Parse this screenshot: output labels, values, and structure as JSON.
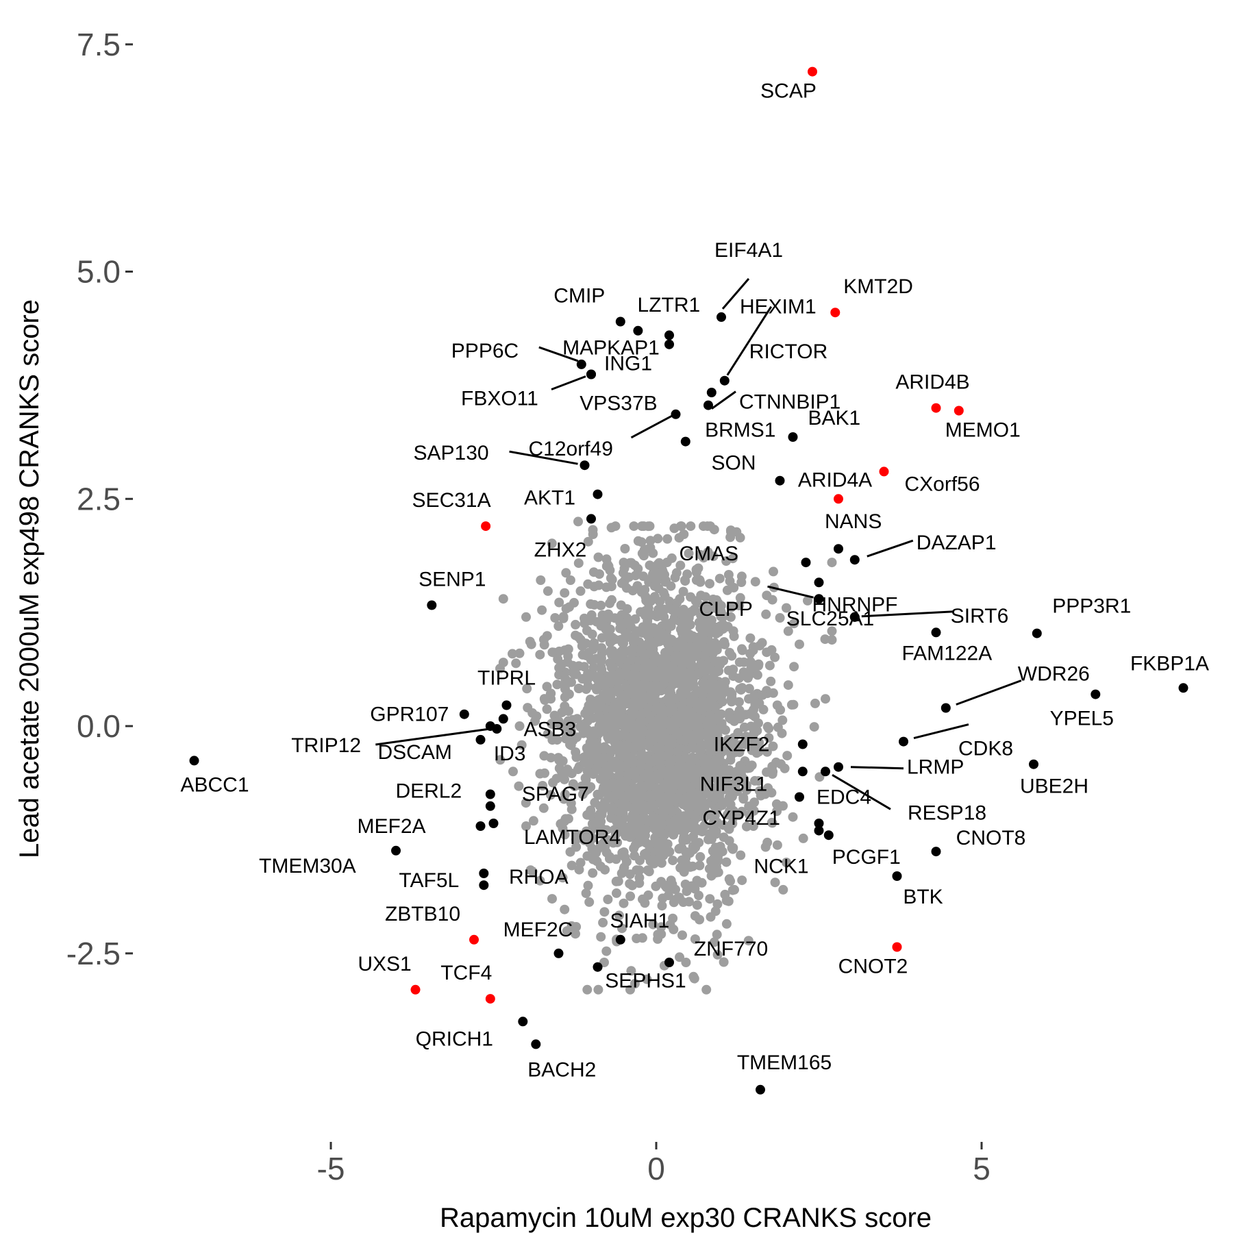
{
  "chart_data": {
    "type": "scatter",
    "title": "",
    "xlabel": "Rapamycin 10uM exp30 CRANKS score",
    "ylabel": "Lead acetate 2000uM exp498 CRANKS score",
    "xlim": [
      -7.45,
      8.35
    ],
    "ylim": [
      -4.42,
      7.82
    ],
    "grid": false,
    "legend": "none",
    "x_ticks": [
      {
        "value": -5,
        "label": "-5"
      },
      {
        "value": 0,
        "label": "0"
      },
      {
        "value": 5,
        "label": "5"
      }
    ],
    "y_ticks": [
      {
        "value": 7.5,
        "label": "7.5"
      },
      {
        "value": 5.0,
        "label": "5.0"
      },
      {
        "value": 2.5,
        "label": "2.5"
      },
      {
        "value": 0.0,
        "label": "0.0"
      },
      {
        "value": -2.5,
        "label": "-2.5"
      }
    ],
    "colors": {
      "background_cloud": "#9e9e9e",
      "significant": "#000000",
      "highlight": "#ff0000",
      "tick_text": "#4d4d4d"
    },
    "background_cloud": {
      "description_points": [
        [
          -1.2,
          2.25
        ],
        [
          -0.5,
          1.8
        ],
        [
          0.5,
          1.9
        ],
        [
          1.8,
          1.7
        ],
        [
          2.7,
          1.8
        ],
        [
          -2.0,
          1.2
        ],
        [
          -2.35,
          1.4
        ],
        [
          -2.1,
          0.8
        ],
        [
          -2.35,
          0.7
        ],
        [
          -2.1,
          0.0
        ],
        [
          -2.0,
          -1.1
        ],
        [
          -1.9,
          -1.6
        ],
        [
          -1.3,
          -2.2
        ],
        [
          -0.8,
          -2.6
        ],
        [
          -0.4,
          -2.9
        ],
        [
          0.4,
          -2.3
        ],
        [
          1.2,
          -1.8
        ],
        [
          1.95,
          -1.8
        ],
        [
          2.0,
          -1.5
        ],
        [
          2.0,
          1.3
        ],
        [
          2.2,
          0.9
        ],
        [
          2.6,
          0.3
        ],
        [
          2.1,
          -1.0
        ],
        [
          -2.2,
          -0.5
        ],
        [
          -1.6,
          -1.9
        ]
      ]
    },
    "series": [
      {
        "color": "red",
        "points": [
          {
            "label": "SCAP",
            "x": 2.4,
            "y": 7.2
          },
          {
            "label": "KMT2D",
            "x": 2.75,
            "y": 4.55
          },
          {
            "label": "ARID4B",
            "x": 4.3,
            "y": 3.5
          },
          {
            "label": "MEMO1",
            "x": 4.65,
            "y": 3.47
          },
          {
            "label": "CXorf56",
            "x": 3.5,
            "y": 2.8
          },
          {
            "label": "ARID4A",
            "x": 2.8,
            "y": 2.5
          },
          {
            "label": "SEC31A",
            "x": -2.62,
            "y": 2.2
          },
          {
            "label": "ZBTB10",
            "x": -2.8,
            "y": -2.35
          },
          {
            "label": "UXS1",
            "x": -3.7,
            "y": -2.9
          },
          {
            "label": "TCF4",
            "x": -2.55,
            "y": -3.0
          },
          {
            "label": "CNOT2",
            "x": 3.7,
            "y": -2.43
          }
        ]
      },
      {
        "color": "black",
        "points": [
          {
            "label": "EIF4A1",
            "x": 1.0,
            "y": 4.5
          },
          {
            "label": "CMIP",
            "x": -0.55,
            "y": 4.45
          },
          {
            "label": "LZTR1",
            "x": -0.28,
            "y": 4.35
          },
          {
            "label": "HEXIM1",
            "x": 1.05,
            "y": 3.8
          },
          {
            "label": "RICTOR",
            "x": 0.85,
            "y": 3.67
          },
          {
            "label": "ING1",
            "x": 0.2,
            "y": 4.2
          },
          {
            "label": "MAPKAP1",
            "x": 0.2,
            "y": 4.3
          },
          {
            "label": "PPP6C",
            "x": -1.15,
            "y": 3.98
          },
          {
            "label": "VPS37B",
            "x": -1.0,
            "y": 3.87
          },
          {
            "label": "FBXO11",
            "x": -1.0,
            "y": 3.87
          },
          {
            "label": "CTNNBIP1",
            "x": 0.8,
            "y": 3.53
          },
          {
            "label": "C12orf49",
            "x": 0.3,
            "y": 3.43
          },
          {
            "label": "BAK1",
            "x": 2.1,
            "y": 3.18
          },
          {
            "label": "BRMS1",
            "x": 0.45,
            "y": 3.13
          },
          {
            "label": "SAP130",
            "x": -1.1,
            "y": 2.87
          },
          {
            "label": "AKT1",
            "x": -0.9,
            "y": 2.55
          },
          {
            "label": "SON",
            "x": 1.9,
            "y": 2.7
          },
          {
            "label": "ZHX2",
            "x": -1.0,
            "y": 2.28
          },
          {
            "label": "NANS",
            "x": 2.8,
            "y": 1.95
          },
          {
            "label": "DAZAP1",
            "x": 3.05,
            "y": 1.83
          },
          {
            "label": "CMAS",
            "x": 2.3,
            "y": 1.8
          },
          {
            "label": "HNRNPF",
            "x": 2.5,
            "y": 1.58
          },
          {
            "label": "CLPP",
            "x": 2.5,
            "y": 1.4
          },
          {
            "label": "SENP1",
            "x": -3.45,
            "y": 1.33
          },
          {
            "label": "SLC25A1",
            "x": 3.05,
            "y": 1.2
          },
          {
            "label": "SIRT6",
            "x": 3.05,
            "y": 1.2
          },
          {
            "label": "PPP3R1",
            "x": 5.85,
            "y": 1.02
          },
          {
            "label": "FAM122A",
            "x": 4.3,
            "y": 1.03
          },
          {
            "label": "FKBP1A",
            "x": 8.1,
            "y": 0.42
          },
          {
            "label": "YPEL5",
            "x": 6.75,
            "y": 0.35
          },
          {
            "label": "WDR26",
            "x": 4.45,
            "y": 0.2
          },
          {
            "label": "CDK8",
            "x": 3.8,
            "y": -0.17
          },
          {
            "label": "TIPRL",
            "x": -2.3,
            "y": 0.23
          },
          {
            "label": "GPR107",
            "x": -2.95,
            "y": 0.13
          },
          {
            "label": "ASB3",
            "x": -2.35,
            "y": 0.08
          },
          {
            "label": "TRIP12",
            "x": -2.45,
            "y": -0.03
          },
          {
            "label": "DSCAM",
            "x": -2.7,
            "y": -0.15
          },
          {
            "label": "ID3",
            "x": -2.55,
            "y": 0.0
          },
          {
            "label": "IKZF2",
            "x": 2.25,
            "y": -0.2
          },
          {
            "label": "LRMP",
            "x": 2.8,
            "y": -0.45
          },
          {
            "label": "UBE2H",
            "x": 5.8,
            "y": -0.42
          },
          {
            "label": "ABCC1",
            "x": -7.1,
            "y": -0.38
          },
          {
            "label": "NIF3L1",
            "x": 2.25,
            "y": -0.5
          },
          {
            "label": "RESP18",
            "x": 2.6,
            "y": -0.5
          },
          {
            "label": "DERL2",
            "x": -2.55,
            "y": -0.75
          },
          {
            "label": "SPAG7",
            "x": -2.55,
            "y": -0.88
          },
          {
            "label": "EDC4",
            "x": 2.2,
            "y": -0.78
          },
          {
            "label": "MEF2A",
            "x": -2.7,
            "y": -1.1
          },
          {
            "label": "LAMTOR4",
            "x": -2.5,
            "y": -1.07
          },
          {
            "label": "CYP4Z1",
            "x": 2.5,
            "y": -1.07
          },
          {
            "label": "PCGF1",
            "x": 2.65,
            "y": -1.2
          },
          {
            "label": "CNOT8",
            "x": 4.3,
            "y": -1.38
          },
          {
            "label": "TMEM30A",
            "x": -4.0,
            "y": -1.37
          },
          {
            "label": "NCK1",
            "x": 2.5,
            "y": -1.15
          },
          {
            "label": "TAF5L",
            "x": -2.65,
            "y": -1.62
          },
          {
            "label": "RHOA",
            "x": -2.65,
            "y": -1.75
          },
          {
            "label": "BTK",
            "x": 3.7,
            "y": -1.65
          },
          {
            "label": "MEF2C",
            "x": -1.5,
            "y": -2.5
          },
          {
            "label": "SIAH1",
            "x": -0.55,
            "y": -2.35
          },
          {
            "label": "ZNF770",
            "x": 0.2,
            "y": -2.6
          },
          {
            "label": "SEPHS1",
            "x": -0.9,
            "y": -2.65
          },
          {
            "label": "QRICH1",
            "x": -2.05,
            "y": -3.25
          },
          {
            "label": "BACH2",
            "x": -1.85,
            "y": -3.5
          },
          {
            "label": "TMEM165",
            "x": 1.6,
            "y": -4.0
          }
        ]
      }
    ]
  }
}
